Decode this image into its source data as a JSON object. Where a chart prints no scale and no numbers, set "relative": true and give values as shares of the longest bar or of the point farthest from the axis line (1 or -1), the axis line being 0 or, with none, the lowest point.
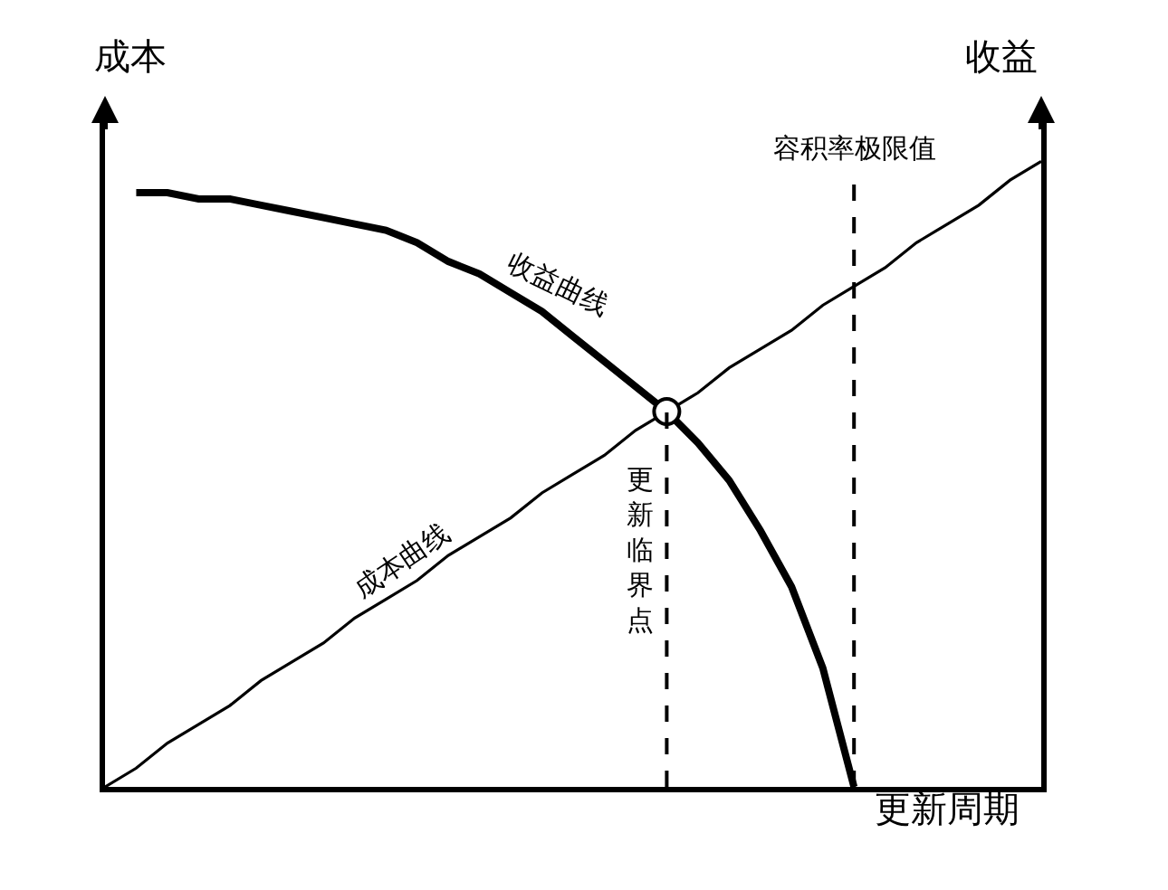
{
  "chart_data": {
    "type": "line",
    "relative": true,
    "legend": false,
    "grid": false,
    "xlabel": "更新周期",
    "ylabel": "成本",
    "y2label": "收益",
    "categories": [
      null,
      null,
      null,
      null,
      null,
      null,
      null,
      null,
      null,
      null,
      null,
      null,
      null,
      null,
      null,
      null,
      null,
      null,
      null,
      null,
      null,
      null,
      null,
      null,
      null,
      null,
      null,
      null,
      null,
      null,
      null
    ],
    "series": [
      {
        "name": "收益曲线",
        "color": "#000000",
        "marker": "none",
        "values": [
          null,
          0.95,
          0.95,
          0.94,
          0.94,
          0.93,
          0.92,
          0.91,
          0.9,
          0.89,
          0.87,
          0.84,
          0.82,
          0.79,
          0.76,
          0.72,
          0.68,
          0.64,
          0.6,
          0.55,
          0.49,
          0.41,
          0.32,
          0.19,
          0,
          null,
          null,
          null,
          null,
          null,
          null
        ]
      },
      {
        "name": "成本曲线",
        "color": "#000000",
        "marker": "none",
        "values": [
          0,
          0.03,
          0.07,
          0.1,
          0.13,
          0.17,
          0.2,
          0.23,
          0.27,
          0.3,
          0.33,
          0.37,
          0.4,
          0.43,
          0.47,
          0.5,
          0.53,
          0.57,
          0.6,
          0.63,
          0.67,
          0.7,
          0.73,
          0.77,
          0.8,
          0.83,
          0.87,
          0.9,
          0.93,
          0.97,
          1
        ]
      }
    ],
    "annotations": [
      "更新临界点",
      "容积率极限值"
    ]
  }
}
